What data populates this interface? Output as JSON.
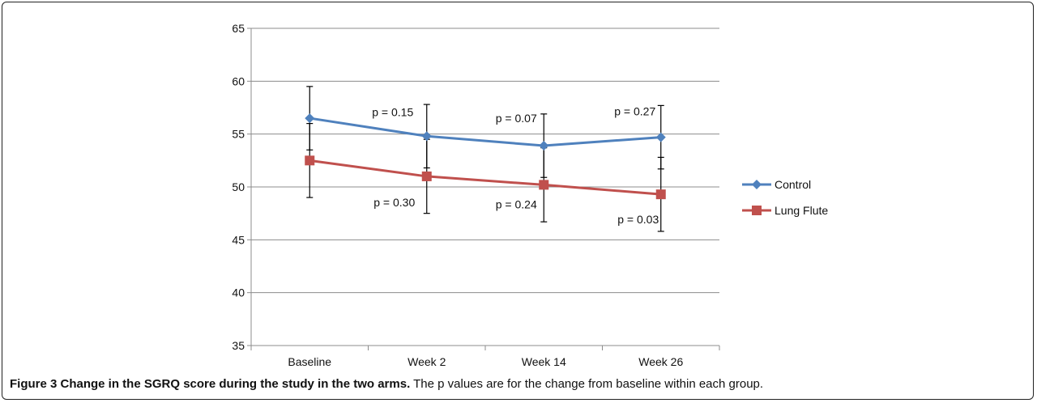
{
  "chart_data": {
    "type": "line",
    "categories": [
      "Baseline",
      "Week 2",
      "Week 14",
      "Week 26"
    ],
    "ylim": [
      35,
      65
    ],
    "yticks": [
      35,
      40,
      45,
      50,
      55,
      60,
      65
    ],
    "grid": true,
    "legend_position": "right",
    "series": [
      {
        "name": "Control",
        "color": "#4F81BD",
        "marker": "diamond",
        "values": [
          56.5,
          54.8,
          53.9,
          54.7
        ],
        "error_low": [
          53.5,
          51.8,
          50.9,
          51.7
        ],
        "error_high": [
          59.5,
          57.8,
          56.9,
          57.7
        ],
        "annotations": [
          "",
          "p = 0.15",
          "p = 0.07",
          "p = 0.27"
        ]
      },
      {
        "name": "Lung Flute",
        "color": "#C0504D",
        "marker": "square",
        "values": [
          52.5,
          51.0,
          50.2,
          49.3
        ],
        "error_low": [
          49.0,
          47.5,
          46.7,
          45.8
        ],
        "error_high": [
          56.0,
          54.5,
          53.7,
          52.8
        ],
        "annotations": [
          "",
          "p = 0.30",
          "p = 0.24",
          "p = 0.03"
        ]
      }
    ]
  },
  "caption": {
    "bold": "Figure 3 Change in the SGRQ score during the study in the two arms.",
    "text": " The p values are for the change from baseline within each group."
  }
}
